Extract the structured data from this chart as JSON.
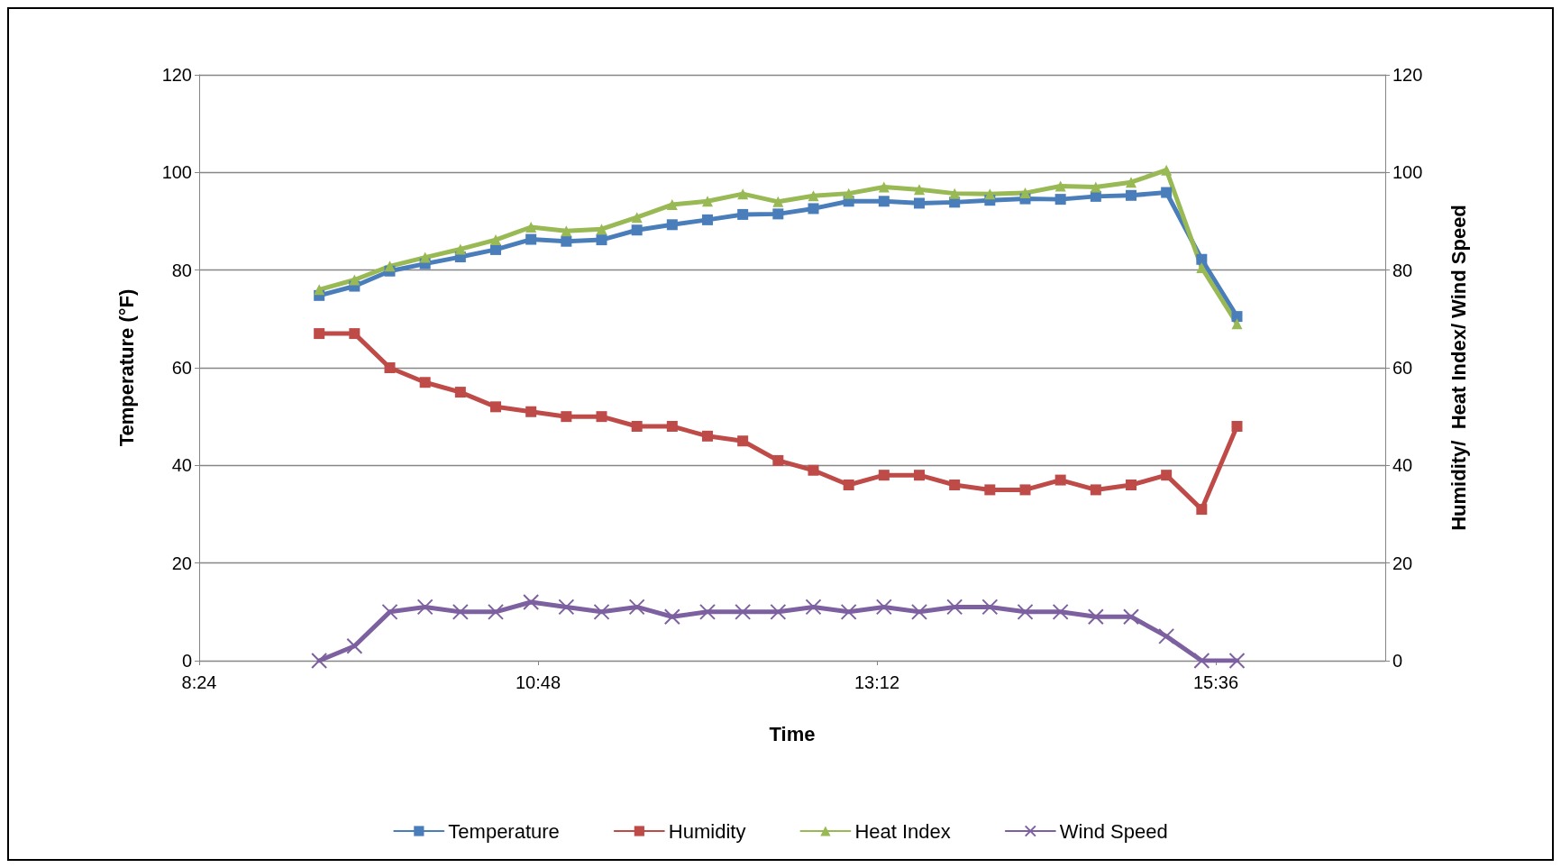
{
  "chart_data": {
    "type": "line",
    "xlabel": "Time",
    "ylabel": "Temperature (°F)",
    "y2label": "Humidity/  Heat Index/ Wind Speed",
    "x": [
      9.25,
      9.5,
      9.75,
      10,
      10.25,
      10.5,
      10.75,
      11,
      11.25,
      11.5,
      11.75,
      12,
      12.25,
      12.5,
      12.75,
      13,
      13.25,
      13.5,
      13.75,
      14,
      14.25,
      14.5,
      14.75,
      15,
      15.25,
      15.5,
      15.75
    ],
    "xlim": [
      8.4,
      16.8
    ],
    "xticks": [
      {
        "value": 8.4,
        "label": "8:24"
      },
      {
        "value": 10.8,
        "label": "10:48"
      },
      {
        "value": 13.2,
        "label": "13:12"
      },
      {
        "value": 15.6,
        "label": "15:36"
      }
    ],
    "ylim": [
      0,
      120
    ],
    "yticks": [
      0,
      20,
      40,
      60,
      80,
      100,
      120
    ],
    "y2lim": [
      0,
      120
    ],
    "y2ticks": [
      0,
      20,
      40,
      60,
      80,
      100,
      120
    ],
    "grid": "y",
    "legend": "bottom",
    "series": [
      {
        "name": "Temperature",
        "color": "#4a7ebb",
        "marker": "square",
        "values": [
          74.8,
          76.7,
          79.8,
          81.3,
          82.7,
          84.2,
          86.3,
          85.9,
          86.2,
          88.2,
          89.3,
          90.3,
          91.4,
          91.5,
          92.6,
          94.1,
          94.1,
          93.7,
          93.9,
          94.3,
          94.6,
          94.5,
          95.1,
          95.3,
          95.9,
          82.2,
          70.5
        ]
      },
      {
        "name": "Humidity",
        "color": "#be4b48",
        "marker": "square",
        "values": [
          67,
          67,
          60,
          57,
          55,
          52,
          51,
          50,
          50,
          48,
          48,
          46,
          45,
          41,
          39,
          36,
          38,
          38,
          36,
          35,
          35,
          37,
          35,
          36,
          38,
          31,
          48
        ]
      },
      {
        "name": "Heat Index",
        "color": "#98b954",
        "marker": "triangle",
        "values": [
          76,
          78,
          80.8,
          82.6,
          84.3,
          86.2,
          88.8,
          88,
          88.4,
          90.8,
          93.4,
          94.1,
          95.6,
          94,
          95.2,
          95.7,
          97,
          96.5,
          95.7,
          95.6,
          95.8,
          97.2,
          97,
          98,
          100.5,
          80.5,
          69
        ]
      },
      {
        "name": "Wind Speed",
        "color": "#7d60a0",
        "marker": "cross",
        "values": [
          0,
          3,
          10,
          11,
          10,
          10,
          12,
          11,
          10,
          11,
          9,
          10,
          10,
          10,
          11,
          10,
          11,
          10,
          11,
          11,
          10,
          10,
          9,
          9,
          5,
          0,
          0
        ]
      }
    ]
  }
}
